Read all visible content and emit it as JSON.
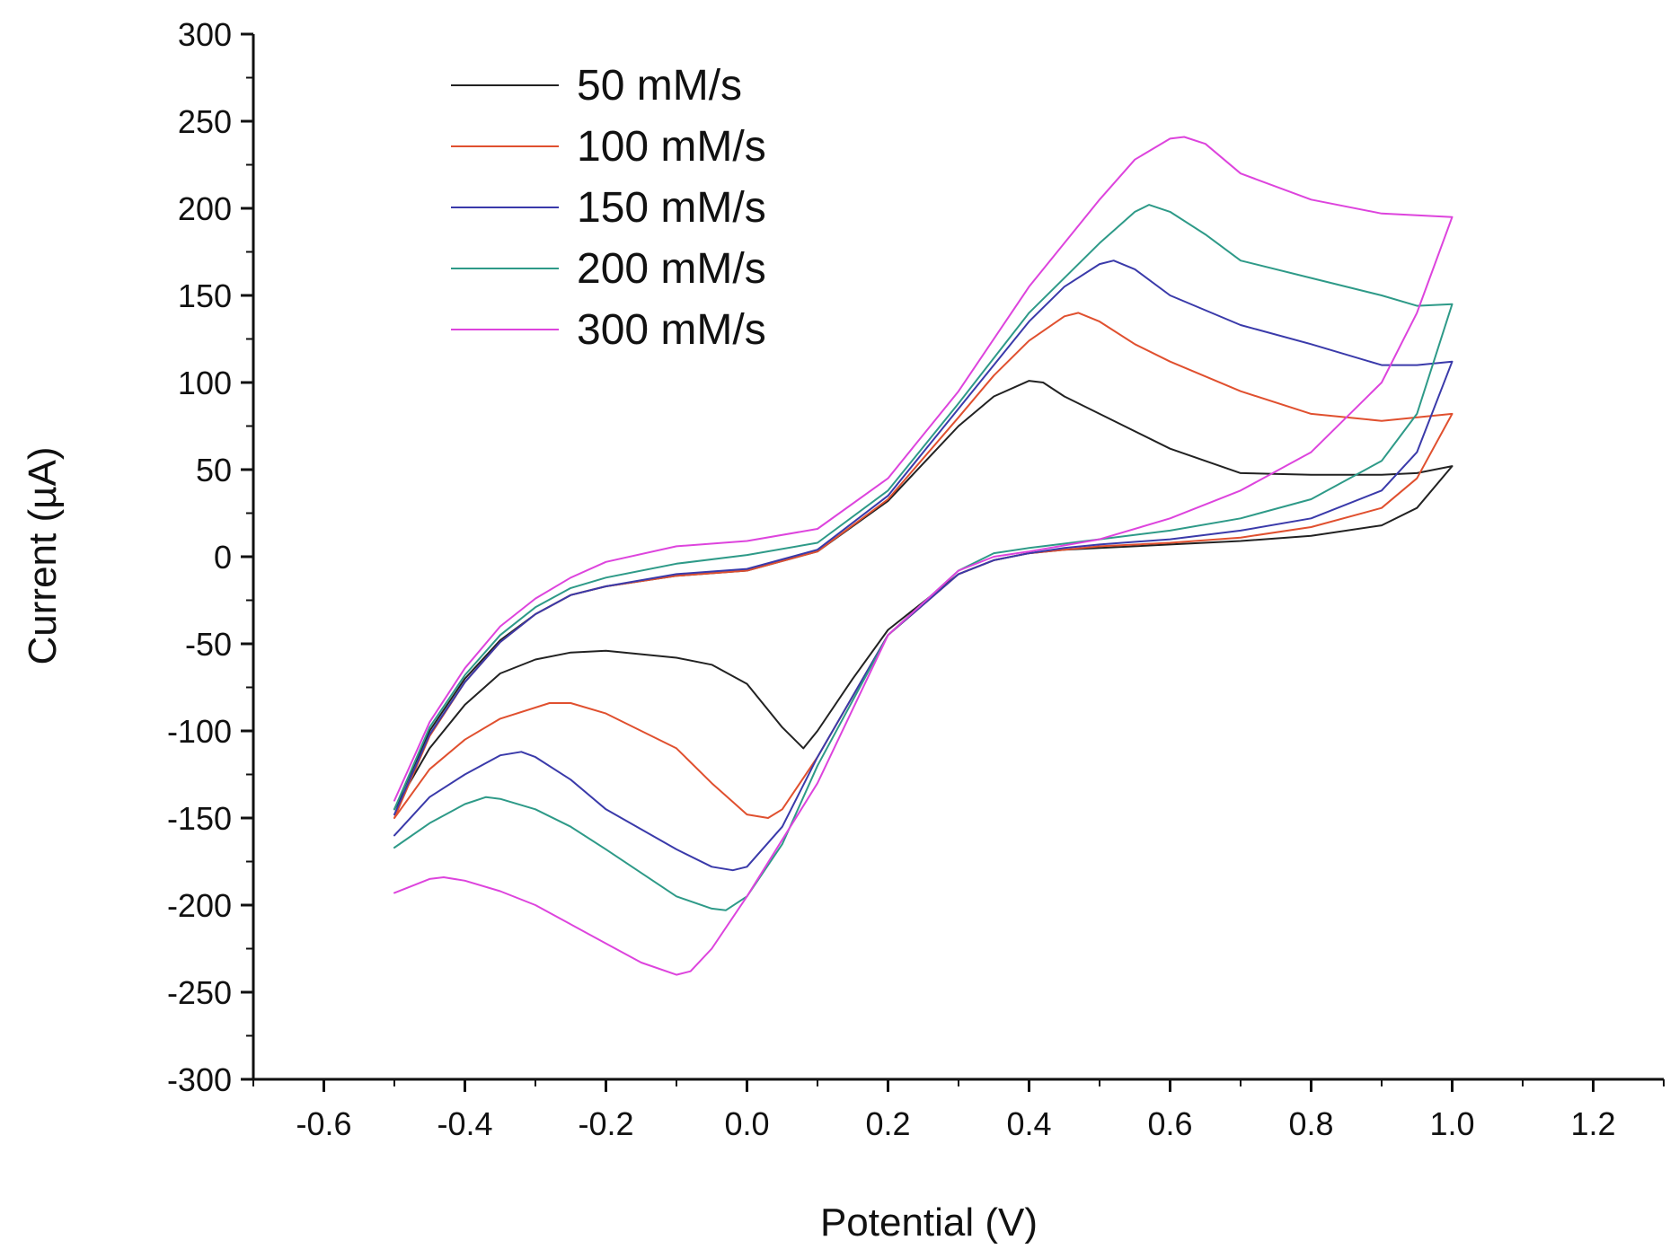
{
  "chart_data": {
    "type": "line",
    "title": "",
    "xlabel": "Potential (V)",
    "ylabel": "Current (µA)",
    "xlim": [
      -0.7,
      1.3
    ],
    "ylim": [
      -300,
      300
    ],
    "xticks": [
      -0.6,
      -0.4,
      -0.2,
      0.0,
      0.2,
      0.4,
      0.6,
      0.8,
      1.0,
      1.2
    ],
    "xtick_labels": [
      "-0.6",
      "-0.4",
      "-0.2",
      "0.0",
      "0.2",
      "0.4",
      "0.6",
      "0.8",
      "1.0",
      "1.2"
    ],
    "yticks": [
      -300,
      -250,
      -200,
      -150,
      -100,
      -50,
      0,
      50,
      100,
      150,
      200,
      250,
      300
    ],
    "ytick_labels": [
      "-300",
      "-250",
      "-200",
      "-150",
      "-100",
      "-50",
      "0",
      "50",
      "100",
      "150",
      "200",
      "250",
      "300"
    ],
    "grid": false,
    "legend_position": "top-left",
    "series": [
      {
        "name": "50 mM/s",
        "color": "#222222",
        "x": [
          -0.5,
          -0.45,
          -0.4,
          -0.35,
          -0.3,
          -0.25,
          -0.2,
          -0.1,
          0.0,
          0.1,
          0.2,
          0.3,
          0.35,
          0.4,
          0.42,
          0.45,
          0.5,
          0.6,
          0.7,
          0.8,
          0.9,
          0.95,
          1.0,
          1.0,
          0.95,
          0.9,
          0.8,
          0.7,
          0.6,
          0.5,
          0.45,
          0.4,
          0.35,
          0.3,
          0.2,
          0.15,
          0.1,
          0.08,
          0.05,
          0.0,
          -0.05,
          -0.1,
          -0.2,
          -0.25,
          -0.3,
          -0.35,
          -0.4,
          -0.45,
          -0.5
        ],
        "y": [
          -145,
          -100,
          -70,
          -48,
          -33,
          -22,
          -17,
          -11,
          -8,
          3,
          32,
          75,
          92,
          101,
          100,
          92,
          82,
          62,
          48,
          47,
          47,
          48,
          52,
          52,
          28,
          18,
          12,
          9,
          7,
          5,
          4,
          2,
          -2,
          -10,
          -42,
          -70,
          -100,
          -110,
          -98,
          -73,
          -62,
          -58,
          -54,
          -55,
          -59,
          -67,
          -85,
          -110,
          -145
        ]
      },
      {
        "name": "100 mM/s",
        "color": "#e0502f",
        "x": [
          -0.5,
          -0.45,
          -0.4,
          -0.35,
          -0.3,
          -0.25,
          -0.2,
          -0.1,
          0.0,
          0.1,
          0.2,
          0.3,
          0.35,
          0.4,
          0.45,
          0.47,
          0.5,
          0.55,
          0.6,
          0.7,
          0.8,
          0.9,
          1.0,
          1.0,
          0.95,
          0.9,
          0.8,
          0.7,
          0.6,
          0.5,
          0.45,
          0.4,
          0.35,
          0.3,
          0.2,
          0.15,
          0.1,
          0.05,
          0.03,
          0.0,
          -0.05,
          -0.1,
          -0.2,
          -0.25,
          -0.28,
          -0.35,
          -0.4,
          -0.45,
          -0.5
        ],
        "y": [
          -150,
          -103,
          -72,
          -49,
          -33,
          -22,
          -17,
          -11,
          -8,
          3,
          33,
          80,
          104,
          124,
          138,
          140,
          135,
          122,
          112,
          95,
          82,
          78,
          82,
          82,
          45,
          28,
          17,
          11,
          8,
          6,
          4,
          2,
          -2,
          -10,
          -45,
          -80,
          -115,
          -145,
          -150,
          -148,
          -130,
          -110,
          -90,
          -84,
          -84,
          -93,
          -105,
          -122,
          -150
        ]
      },
      {
        "name": "150 mM/s",
        "color": "#3a3aaa",
        "x": [
          -0.5,
          -0.45,
          -0.4,
          -0.35,
          -0.3,
          -0.25,
          -0.2,
          -0.1,
          0.0,
          0.1,
          0.2,
          0.3,
          0.4,
          0.45,
          0.5,
          0.52,
          0.55,
          0.6,
          0.7,
          0.8,
          0.9,
          0.95,
          1.0,
          1.0,
          0.95,
          0.9,
          0.8,
          0.7,
          0.6,
          0.5,
          0.45,
          0.4,
          0.35,
          0.3,
          0.2,
          0.1,
          0.05,
          0.0,
          -0.02,
          -0.05,
          -0.1,
          -0.2,
          -0.25,
          -0.3,
          -0.32,
          -0.35,
          -0.4,
          -0.45,
          -0.5
        ],
        "y": [
          -148,
          -102,
          -72,
          -49,
          -33,
          -22,
          -17,
          -10,
          -7,
          4,
          35,
          85,
          135,
          155,
          168,
          170,
          165,
          150,
          133,
          122,
          110,
          110,
          112,
          112,
          60,
          38,
          22,
          15,
          10,
          7,
          5,
          2,
          -2,
          -10,
          -45,
          -115,
          -155,
          -178,
          -180,
          -178,
          -168,
          -145,
          -128,
          -115,
          -112,
          -114,
          -125,
          -138,
          -160
        ]
      },
      {
        "name": "200 mM/s",
        "color": "#2e9a88",
        "x": [
          -0.5,
          -0.45,
          -0.4,
          -0.35,
          -0.3,
          -0.25,
          -0.2,
          -0.1,
          0.0,
          0.1,
          0.2,
          0.3,
          0.4,
          0.5,
          0.55,
          0.57,
          0.6,
          0.65,
          0.7,
          0.8,
          0.9,
          0.95,
          1.0,
          1.0,
          0.95,
          0.9,
          0.8,
          0.7,
          0.6,
          0.5,
          0.4,
          0.35,
          0.3,
          0.2,
          0.1,
          0.05,
          0.0,
          -0.03,
          -0.05,
          -0.1,
          -0.2,
          -0.25,
          -0.3,
          -0.35,
          -0.37,
          -0.4,
          -0.45,
          -0.5
        ],
        "y": [
          -145,
          -98,
          -68,
          -45,
          -29,
          -18,
          -12,
          -4,
          1,
          8,
          38,
          88,
          140,
          180,
          198,
          202,
          198,
          185,
          170,
          160,
          150,
          144,
          145,
          145,
          82,
          55,
          33,
          22,
          15,
          10,
          5,
          2,
          -8,
          -45,
          -120,
          -165,
          -195,
          -203,
          -202,
          -195,
          -168,
          -155,
          -145,
          -139,
          -138,
          -142,
          -153,
          -167
        ]
      },
      {
        "name": "300 mM/s",
        "color": "#dd44dd",
        "x": [
          -0.5,
          -0.45,
          -0.4,
          -0.35,
          -0.3,
          -0.25,
          -0.2,
          -0.1,
          0.0,
          0.1,
          0.2,
          0.3,
          0.4,
          0.5,
          0.55,
          0.6,
          0.62,
          0.65,
          0.7,
          0.8,
          0.9,
          1.0,
          1.0,
          0.95,
          0.9,
          0.8,
          0.7,
          0.6,
          0.5,
          0.4,
          0.35,
          0.3,
          0.2,
          0.1,
          0.0,
          -0.05,
          -0.08,
          -0.1,
          -0.15,
          -0.2,
          -0.3,
          -0.35,
          -0.4,
          -0.43,
          -0.45,
          -0.5
        ],
        "y": [
          -140,
          -95,
          -64,
          -40,
          -24,
          -12,
          -3,
          6,
          9,
          16,
          45,
          95,
          155,
          205,
          228,
          240,
          241,
          237,
          220,
          205,
          197,
          195,
          195,
          140,
          100,
          60,
          38,
          22,
          10,
          3,
          0,
          -8,
          -45,
          -130,
          -195,
          -225,
          -238,
          -240,
          -233,
          -222,
          -200,
          -192,
          -186,
          -184,
          -185,
          -193
        ]
      }
    ]
  }
}
